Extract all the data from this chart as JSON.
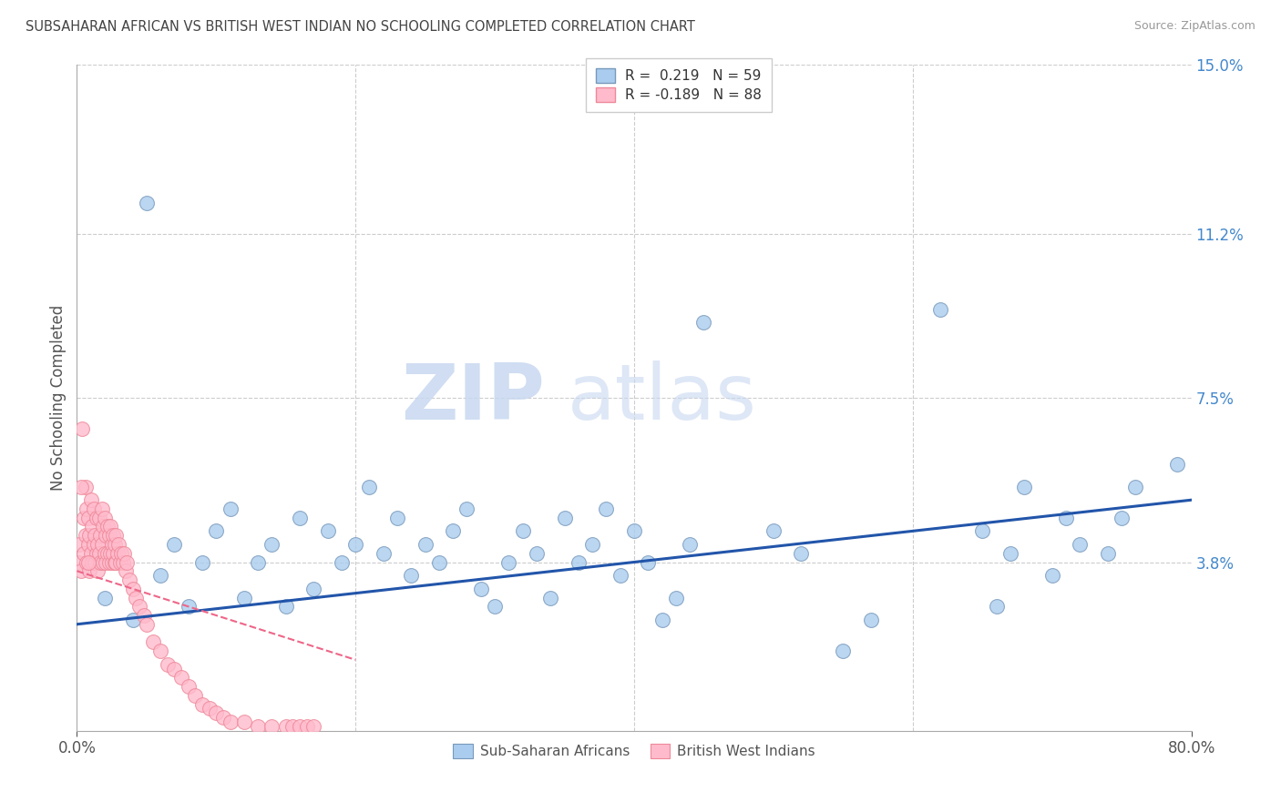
{
  "title": "SUBSAHARAN AFRICAN VS BRITISH WEST INDIAN NO SCHOOLING COMPLETED CORRELATION CHART",
  "source": "Source: ZipAtlas.com",
  "ylabel": "No Schooling Completed",
  "xlim": [
    0.0,
    0.8
  ],
  "ylim": [
    0.0,
    0.15
  ],
  "ytick_positions": [
    0.038,
    0.075,
    0.112,
    0.15
  ],
  "ytick_labels": [
    "3.8%",
    "7.5%",
    "11.2%",
    "15.0%"
  ],
  "xtick_positions": [
    0.0,
    0.8
  ],
  "xtick_labels": [
    "0.0%",
    "80.0%"
  ],
  "grid_vert": [
    0.2,
    0.4,
    0.6
  ],
  "r_blue": 0.219,
  "n_blue": 59,
  "r_pink": -0.189,
  "n_pink": 88,
  "legend_label_blue": "Sub-Saharan Africans",
  "legend_label_pink": "British West Indians",
  "watermark_zip": "ZIP",
  "watermark_atlas": "atlas",
  "background_color": "#ffffff",
  "blue_scatter_color_face": "#aaccee",
  "blue_scatter_color_edge": "#7799bb",
  "pink_scatter_color_face": "#ffbbcc",
  "pink_scatter_color_edge": "#ee8899",
  "trend_blue_color": "#2255aa",
  "trend_pink_color": "#ee6688",
  "blue_trend_start_y": 0.024,
  "blue_trend_end_y": 0.052,
  "pink_trend_start_y": 0.036,
  "pink_trend_end_y": 0.016,
  "pink_trend_end_x": 0.2,
  "blue_x": [
    0.02,
    0.04,
    0.05,
    0.06,
    0.07,
    0.08,
    0.09,
    0.1,
    0.11,
    0.12,
    0.13,
    0.14,
    0.15,
    0.16,
    0.17,
    0.18,
    0.19,
    0.2,
    0.21,
    0.22,
    0.23,
    0.24,
    0.25,
    0.26,
    0.27,
    0.28,
    0.29,
    0.3,
    0.31,
    0.32,
    0.33,
    0.34,
    0.35,
    0.36,
    0.37,
    0.38,
    0.39,
    0.4,
    0.41,
    0.42,
    0.43,
    0.44,
    0.45,
    0.5,
    0.52,
    0.55,
    0.57,
    0.62,
    0.65,
    0.66,
    0.67,
    0.68,
    0.7,
    0.71,
    0.72,
    0.74,
    0.75,
    0.76,
    0.79
  ],
  "blue_y": [
    0.03,
    0.025,
    0.119,
    0.035,
    0.042,
    0.028,
    0.038,
    0.045,
    0.05,
    0.03,
    0.038,
    0.042,
    0.028,
    0.048,
    0.032,
    0.045,
    0.038,
    0.042,
    0.055,
    0.04,
    0.048,
    0.035,
    0.042,
    0.038,
    0.045,
    0.05,
    0.032,
    0.028,
    0.038,
    0.045,
    0.04,
    0.03,
    0.048,
    0.038,
    0.042,
    0.05,
    0.035,
    0.045,
    0.038,
    0.025,
    0.03,
    0.042,
    0.092,
    0.045,
    0.04,
    0.018,
    0.025,
    0.095,
    0.045,
    0.028,
    0.04,
    0.055,
    0.035,
    0.048,
    0.042,
    0.04,
    0.048,
    0.055,
    0.06
  ],
  "pink_x": [
    0.001,
    0.002,
    0.003,
    0.004,
    0.005,
    0.005,
    0.006,
    0.006,
    0.007,
    0.007,
    0.008,
    0.008,
    0.009,
    0.009,
    0.01,
    0.01,
    0.011,
    0.011,
    0.012,
    0.012,
    0.013,
    0.013,
    0.014,
    0.014,
    0.015,
    0.015,
    0.016,
    0.016,
    0.017,
    0.017,
    0.018,
    0.018,
    0.019,
    0.019,
    0.02,
    0.02,
    0.021,
    0.021,
    0.022,
    0.022,
    0.023,
    0.023,
    0.024,
    0.024,
    0.025,
    0.025,
    0.026,
    0.026,
    0.027,
    0.027,
    0.028,
    0.028,
    0.029,
    0.03,
    0.031,
    0.032,
    0.033,
    0.034,
    0.035,
    0.036,
    0.038,
    0.04,
    0.042,
    0.045,
    0.048,
    0.05,
    0.055,
    0.06,
    0.065,
    0.07,
    0.075,
    0.08,
    0.085,
    0.09,
    0.095,
    0.1,
    0.105,
    0.11,
    0.12,
    0.13,
    0.14,
    0.15,
    0.155,
    0.16,
    0.165,
    0.17,
    0.003,
    0.008
  ],
  "pink_y": [
    0.038,
    0.042,
    0.036,
    0.068,
    0.04,
    0.048,
    0.044,
    0.055,
    0.038,
    0.05,
    0.042,
    0.048,
    0.036,
    0.044,
    0.04,
    0.052,
    0.038,
    0.046,
    0.042,
    0.05,
    0.038,
    0.044,
    0.04,
    0.048,
    0.036,
    0.042,
    0.04,
    0.048,
    0.038,
    0.044,
    0.042,
    0.05,
    0.038,
    0.046,
    0.04,
    0.048,
    0.038,
    0.044,
    0.04,
    0.046,
    0.038,
    0.044,
    0.04,
    0.046,
    0.038,
    0.042,
    0.04,
    0.044,
    0.038,
    0.042,
    0.038,
    0.044,
    0.04,
    0.042,
    0.038,
    0.04,
    0.038,
    0.04,
    0.036,
    0.038,
    0.034,
    0.032,
    0.03,
    0.028,
    0.026,
    0.024,
    0.02,
    0.018,
    0.015,
    0.014,
    0.012,
    0.01,
    0.008,
    0.006,
    0.005,
    0.004,
    0.003,
    0.002,
    0.002,
    0.001,
    0.001,
    0.001,
    0.001,
    0.001,
    0.001,
    0.001,
    0.055,
    0.038
  ]
}
